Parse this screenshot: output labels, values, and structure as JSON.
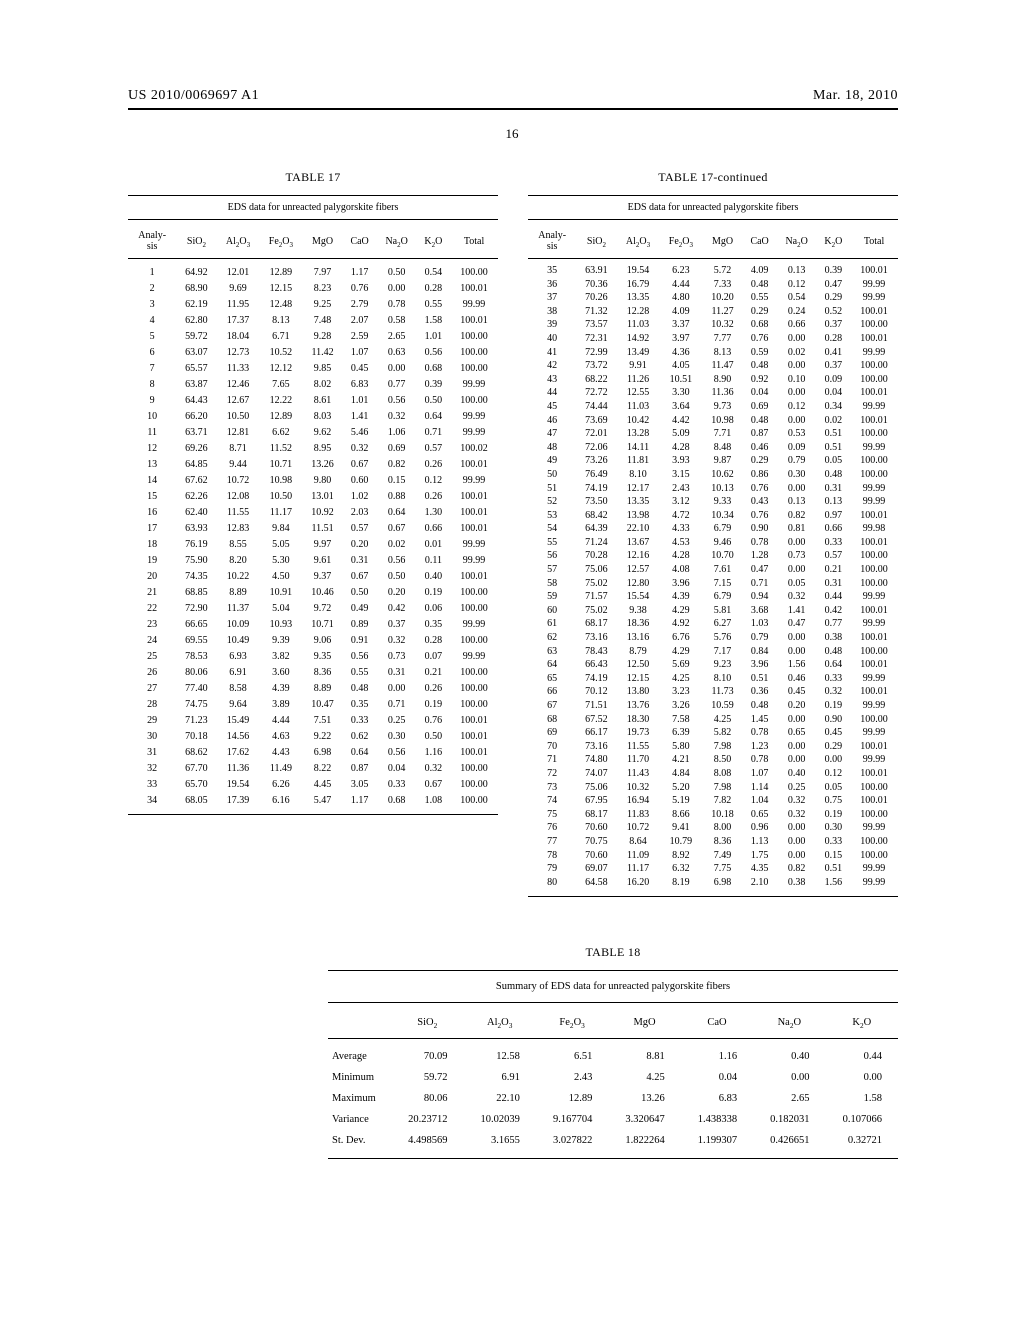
{
  "header": {
    "left": "US 2010/0069697 A1",
    "right": "Mar. 18, 2010",
    "page": "16"
  },
  "table17": {
    "title": "TABLE 17",
    "title_cont": "TABLE 17-continued",
    "caption": "EDS data for unreacted palygorskite fibers",
    "columns": [
      "Analy-\nsis",
      "SiO2",
      "Al2O3",
      "Fe2O3",
      "MgO",
      "CaO",
      "Na2O",
      "K2O",
      "Total"
    ],
    "left_rows": [
      [
        "1",
        "64.92",
        "12.01",
        "12.89",
        "7.97",
        "1.17",
        "0.50",
        "0.54",
        "100.00"
      ],
      [
        "2",
        "68.90",
        "9.69",
        "12.15",
        "8.23",
        "0.76",
        "0.00",
        "0.28",
        "100.01"
      ],
      [
        "3",
        "62.19",
        "11.95",
        "12.48",
        "9.25",
        "2.79",
        "0.78",
        "0.55",
        "99.99"
      ],
      [
        "4",
        "62.80",
        "17.37",
        "8.13",
        "7.48",
        "2.07",
        "0.58",
        "1.58",
        "100.01"
      ],
      [
        "5",
        "59.72",
        "18.04",
        "6.71",
        "9.28",
        "2.59",
        "2.65",
        "1.01",
        "100.00"
      ],
      [
        "6",
        "63.07",
        "12.73",
        "10.52",
        "11.42",
        "1.07",
        "0.63",
        "0.56",
        "100.00"
      ],
      [
        "7",
        "65.57",
        "11.33",
        "12.12",
        "9.85",
        "0.45",
        "0.00",
        "0.68",
        "100.00"
      ],
      [
        "8",
        "63.87",
        "12.46",
        "7.65",
        "8.02",
        "6.83",
        "0.77",
        "0.39",
        "99.99"
      ],
      [
        "9",
        "64.43",
        "12.67",
        "12.22",
        "8.61",
        "1.01",
        "0.56",
        "0.50",
        "100.00"
      ],
      [
        "10",
        "66.20",
        "10.50",
        "12.89",
        "8.03",
        "1.41",
        "0.32",
        "0.64",
        "99.99"
      ],
      [
        "11",
        "63.71",
        "12.81",
        "6.62",
        "9.62",
        "5.46",
        "1.06",
        "0.71",
        "99.99"
      ],
      [
        "12",
        "69.26",
        "8.71",
        "11.52",
        "8.95",
        "0.32",
        "0.69",
        "0.57",
        "100.02"
      ],
      [
        "13",
        "64.85",
        "9.44",
        "10.71",
        "13.26",
        "0.67",
        "0.82",
        "0.26",
        "100.01"
      ],
      [
        "14",
        "67.62",
        "10.72",
        "10.98",
        "9.80",
        "0.60",
        "0.15",
        "0.12",
        "99.99"
      ],
      [
        "15",
        "62.26",
        "12.08",
        "10.50",
        "13.01",
        "1.02",
        "0.88",
        "0.26",
        "100.01"
      ],
      [
        "16",
        "62.40",
        "11.55",
        "11.17",
        "10.92",
        "2.03",
        "0.64",
        "1.30",
        "100.01"
      ],
      [
        "17",
        "63.93",
        "12.83",
        "9.84",
        "11.51",
        "0.57",
        "0.67",
        "0.66",
        "100.01"
      ],
      [
        "18",
        "76.19",
        "8.55",
        "5.05",
        "9.97",
        "0.20",
        "0.02",
        "0.01",
        "99.99"
      ],
      [
        "19",
        "75.90",
        "8.20",
        "5.30",
        "9.61",
        "0.31",
        "0.56",
        "0.11",
        "99.99"
      ],
      [
        "20",
        "74.35",
        "10.22",
        "4.50",
        "9.37",
        "0.67",
        "0.50",
        "0.40",
        "100.01"
      ],
      [
        "21",
        "68.85",
        "8.89",
        "10.91",
        "10.46",
        "0.50",
        "0.20",
        "0.19",
        "100.00"
      ],
      [
        "22",
        "72.90",
        "11.37",
        "5.04",
        "9.72",
        "0.49",
        "0.42",
        "0.06",
        "100.00"
      ],
      [
        "23",
        "66.65",
        "10.09",
        "10.93",
        "10.71",
        "0.89",
        "0.37",
        "0.35",
        "99.99"
      ],
      [
        "24",
        "69.55",
        "10.49",
        "9.39",
        "9.06",
        "0.91",
        "0.32",
        "0.28",
        "100.00"
      ],
      [
        "25",
        "78.53",
        "6.93",
        "3.82",
        "9.35",
        "0.56",
        "0.73",
        "0.07",
        "99.99"
      ],
      [
        "26",
        "80.06",
        "6.91",
        "3.60",
        "8.36",
        "0.55",
        "0.31",
        "0.21",
        "100.00"
      ],
      [
        "27",
        "77.40",
        "8.58",
        "4.39",
        "8.89",
        "0.48",
        "0.00",
        "0.26",
        "100.00"
      ],
      [
        "28",
        "74.75",
        "9.64",
        "3.89",
        "10.47",
        "0.35",
        "0.71",
        "0.19",
        "100.00"
      ],
      [
        "29",
        "71.23",
        "15.49",
        "4.44",
        "7.51",
        "0.33",
        "0.25",
        "0.76",
        "100.01"
      ],
      [
        "30",
        "70.18",
        "14.56",
        "4.63",
        "9.22",
        "0.62",
        "0.30",
        "0.50",
        "100.01"
      ],
      [
        "31",
        "68.62",
        "17.62",
        "4.43",
        "6.98",
        "0.64",
        "0.56",
        "1.16",
        "100.01"
      ],
      [
        "32",
        "67.70",
        "11.36",
        "11.49",
        "8.22",
        "0.87",
        "0.04",
        "0.32",
        "100.00"
      ],
      [
        "33",
        "65.70",
        "19.54",
        "6.26",
        "4.45",
        "3.05",
        "0.33",
        "0.67",
        "100.00"
      ],
      [
        "34",
        "68.05",
        "17.39",
        "6.16",
        "5.47",
        "1.17",
        "0.68",
        "1.08",
        "100.00"
      ]
    ],
    "right_rows": [
      [
        "35",
        "63.91",
        "19.54",
        "6.23",
        "5.72",
        "4.09",
        "0.13",
        "0.39",
        "100.01"
      ],
      [
        "36",
        "70.36",
        "16.79",
        "4.44",
        "7.33",
        "0.48",
        "0.12",
        "0.47",
        "99.99"
      ],
      [
        "37",
        "70.26",
        "13.35",
        "4.80",
        "10.20",
        "0.55",
        "0.54",
        "0.29",
        "99.99"
      ],
      [
        "38",
        "71.32",
        "12.28",
        "4.09",
        "11.27",
        "0.29",
        "0.24",
        "0.52",
        "100.01"
      ],
      [
        "39",
        "73.57",
        "11.03",
        "3.37",
        "10.32",
        "0.68",
        "0.66",
        "0.37",
        "100.00"
      ],
      [
        "40",
        "72.31",
        "14.92",
        "3.97",
        "7.77",
        "0.76",
        "0.00",
        "0.28",
        "100.01"
      ],
      [
        "41",
        "72.99",
        "13.49",
        "4.36",
        "8.13",
        "0.59",
        "0.02",
        "0.41",
        "99.99"
      ],
      [
        "42",
        "73.72",
        "9.91",
        "4.05",
        "11.47",
        "0.48",
        "0.00",
        "0.37",
        "100.00"
      ],
      [
        "43",
        "68.22",
        "11.26",
        "10.51",
        "8.90",
        "0.92",
        "0.10",
        "0.09",
        "100.00"
      ],
      [
        "44",
        "72.72",
        "12.55",
        "3.30",
        "11.36",
        "0.04",
        "0.00",
        "0.04",
        "100.01"
      ],
      [
        "45",
        "74.44",
        "11.03",
        "3.64",
        "9.73",
        "0.69",
        "0.12",
        "0.34",
        "99.99"
      ],
      [
        "46",
        "73.69",
        "10.42",
        "4.42",
        "10.98",
        "0.48",
        "0.00",
        "0.02",
        "100.01"
      ],
      [
        "47",
        "72.01",
        "13.28",
        "5.09",
        "7.71",
        "0.87",
        "0.53",
        "0.51",
        "100.00"
      ],
      [
        "48",
        "72.06",
        "14.11",
        "4.28",
        "8.48",
        "0.46",
        "0.09",
        "0.51",
        "99.99"
      ],
      [
        "49",
        "73.26",
        "11.81",
        "3.93",
        "9.87",
        "0.29",
        "0.79",
        "0.05",
        "100.00"
      ],
      [
        "50",
        "76.49",
        "8.10",
        "3.15",
        "10.62",
        "0.86",
        "0.30",
        "0.48",
        "100.00"
      ],
      [
        "51",
        "74.19",
        "12.17",
        "2.43",
        "10.13",
        "0.76",
        "0.00",
        "0.31",
        "99.99"
      ],
      [
        "52",
        "73.50",
        "13.35",
        "3.12",
        "9.33",
        "0.43",
        "0.13",
        "0.13",
        "99.99"
      ],
      [
        "53",
        "68.42",
        "13.98",
        "4.72",
        "10.34",
        "0.76",
        "0.82",
        "0.97",
        "100.01"
      ],
      [
        "54",
        "64.39",
        "22.10",
        "4.33",
        "6.79",
        "0.90",
        "0.81",
        "0.66",
        "99.98"
      ],
      [
        "55",
        "71.24",
        "13.67",
        "4.53",
        "9.46",
        "0.78",
        "0.00",
        "0.33",
        "100.01"
      ],
      [
        "56",
        "70.28",
        "12.16",
        "4.28",
        "10.70",
        "1.28",
        "0.73",
        "0.57",
        "100.00"
      ],
      [
        "57",
        "75.06",
        "12.57",
        "4.08",
        "7.61",
        "0.47",
        "0.00",
        "0.21",
        "100.00"
      ],
      [
        "58",
        "75.02",
        "12.80",
        "3.96",
        "7.15",
        "0.71",
        "0.05",
        "0.31",
        "100.00"
      ],
      [
        "59",
        "71.57",
        "15.54",
        "4.39",
        "6.79",
        "0.94",
        "0.32",
        "0.44",
        "99.99"
      ],
      [
        "60",
        "75.02",
        "9.38",
        "4.29",
        "5.81",
        "3.68",
        "1.41",
        "0.42",
        "100.01"
      ],
      [
        "61",
        "68.17",
        "18.36",
        "4.92",
        "6.27",
        "1.03",
        "0.47",
        "0.77",
        "99.99"
      ],
      [
        "62",
        "73.16",
        "13.16",
        "6.76",
        "5.76",
        "0.79",
        "0.00",
        "0.38",
        "100.01"
      ],
      [
        "63",
        "78.43",
        "8.79",
        "4.29",
        "7.17",
        "0.84",
        "0.00",
        "0.48",
        "100.00"
      ],
      [
        "64",
        "66.43",
        "12.50",
        "5.69",
        "9.23",
        "3.96",
        "1.56",
        "0.64",
        "100.01"
      ],
      [
        "65",
        "74.19",
        "12.15",
        "4.25",
        "8.10",
        "0.51",
        "0.46",
        "0.33",
        "99.99"
      ],
      [
        "66",
        "70.12",
        "13.80",
        "3.23",
        "11.73",
        "0.36",
        "0.45",
        "0.32",
        "100.01"
      ],
      [
        "67",
        "71.51",
        "13.76",
        "3.26",
        "10.59",
        "0.48",
        "0.20",
        "0.19",
        "99.99"
      ],
      [
        "68",
        "67.52",
        "18.30",
        "7.58",
        "4.25",
        "1.45",
        "0.00",
        "0.90",
        "100.00"
      ],
      [
        "69",
        "66.17",
        "19.73",
        "6.39",
        "5.82",
        "0.78",
        "0.65",
        "0.45",
        "99.99"
      ],
      [
        "70",
        "73.16",
        "11.55",
        "5.80",
        "7.98",
        "1.23",
        "0.00",
        "0.29",
        "100.01"
      ],
      [
        "71",
        "74.80",
        "11.70",
        "4.21",
        "8.50",
        "0.78",
        "0.00",
        "0.00",
        "99.99"
      ],
      [
        "72",
        "74.07",
        "11.43",
        "4.84",
        "8.08",
        "1.07",
        "0.40",
        "0.12",
        "100.01"
      ],
      [
        "73",
        "75.06",
        "10.32",
        "5.20",
        "7.98",
        "1.14",
        "0.25",
        "0.05",
        "100.00"
      ],
      [
        "74",
        "67.95",
        "16.94",
        "5.19",
        "7.82",
        "1.04",
        "0.32",
        "0.75",
        "100.01"
      ],
      [
        "75",
        "68.17",
        "11.83",
        "8.66",
        "10.18",
        "0.65",
        "0.32",
        "0.19",
        "100.00"
      ],
      [
        "76",
        "70.60",
        "10.72",
        "9.41",
        "8.00",
        "0.96",
        "0.00",
        "0.30",
        "99.99"
      ],
      [
        "77",
        "70.75",
        "8.64",
        "10.79",
        "8.36",
        "1.13",
        "0.00",
        "0.33",
        "100.00"
      ],
      [
        "78",
        "70.60",
        "11.09",
        "8.92",
        "7.49",
        "1.75",
        "0.00",
        "0.15",
        "100.00"
      ],
      [
        "79",
        "69.07",
        "11.17",
        "6.32",
        "7.75",
        "4.35",
        "0.82",
        "0.51",
        "99.99"
      ],
      [
        "80",
        "64.58",
        "16.20",
        "8.19",
        "6.98",
        "2.10",
        "0.38",
        "1.56",
        "99.99"
      ]
    ]
  },
  "table18": {
    "title": "TABLE 18",
    "caption": "Summary of EDS data for unreacted palygorskite fibers",
    "columns": [
      "",
      "SiO2",
      "Al2O3",
      "Fe2O3",
      "MgO",
      "CaO",
      "Na2O",
      "K2O"
    ],
    "rows": [
      [
        "Average",
        "70.09",
        "12.58",
        "6.51",
        "8.81",
        "1.16",
        "0.40",
        "0.44"
      ],
      [
        "Minimum",
        "59.72",
        "6.91",
        "2.43",
        "4.25",
        "0.04",
        "0.00",
        "0.00"
      ],
      [
        "Maximum",
        "80.06",
        "22.10",
        "12.89",
        "13.26",
        "6.83",
        "2.65",
        "1.58"
      ],
      [
        "Variance",
        "20.23712",
        "10.02039",
        "9.167704",
        "3.320647",
        "1.438338",
        "0.182031",
        "0.107066"
      ],
      [
        "St. Dev.",
        "4.498569",
        "3.1655",
        "3.027822",
        "1.822264",
        "1.199307",
        "0.426651",
        "0.32721"
      ]
    ]
  }
}
